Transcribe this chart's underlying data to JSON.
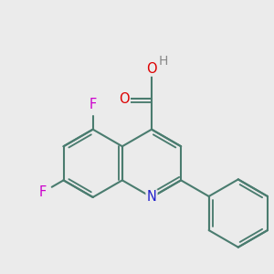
{
  "background_color": "#ebebeb",
  "bond_color": "#4a7c6f",
  "bond_width": 1.5,
  "atom_colors": {
    "N": "#2020cc",
    "O": "#dd0000",
    "F": "#cc00cc",
    "H": "#888888"
  },
  "font_size": 10.5,
  "bl": 0.58
}
